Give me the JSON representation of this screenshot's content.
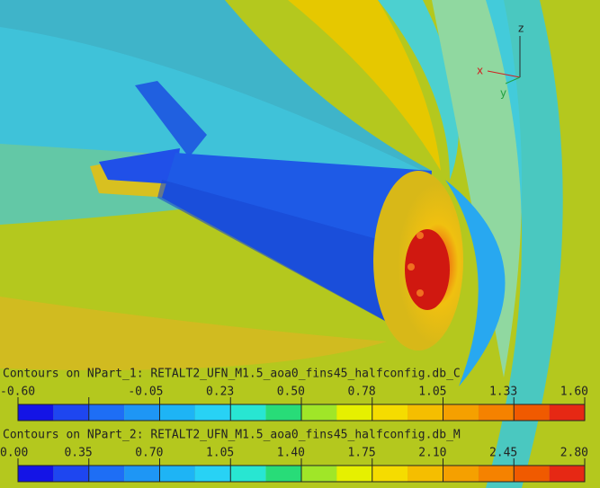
{
  "axes": {
    "z": "z",
    "x": "x",
    "y": "y"
  },
  "colors": [
    "#1414e6",
    "#1e46f0",
    "#1e6ef5",
    "#1e96f5",
    "#1eb4f5",
    "#28d2f5",
    "#28e6d2",
    "#28dc78",
    "#a0e628",
    "#e6f000",
    "#f5dc00",
    "#f5be00",
    "#f5a000",
    "#f58200",
    "#f05a00",
    "#e62814"
  ],
  "legends": [
    {
      "title": "Contours on NPart_1: RETALT2_UFN_M1.5_aoa0_fins45_halfconfig.db_C",
      "ticks": [
        "-0.60",
        null,
        "-0.05",
        "0.23",
        "0.50",
        "0.78",
        "1.05",
        "1.33",
        "1.60"
      ]
    },
    {
      "title": "Contours on NPart_2: RETALT2_UFN_M1.5_aoa0_fins45_halfconfig.db_M",
      "ticks": [
        "0.00",
        "0.35",
        "0.70",
        "1.05",
        "1.40",
        "1.75",
        "2.10",
        "2.45",
        "2.80"
      ]
    }
  ]
}
